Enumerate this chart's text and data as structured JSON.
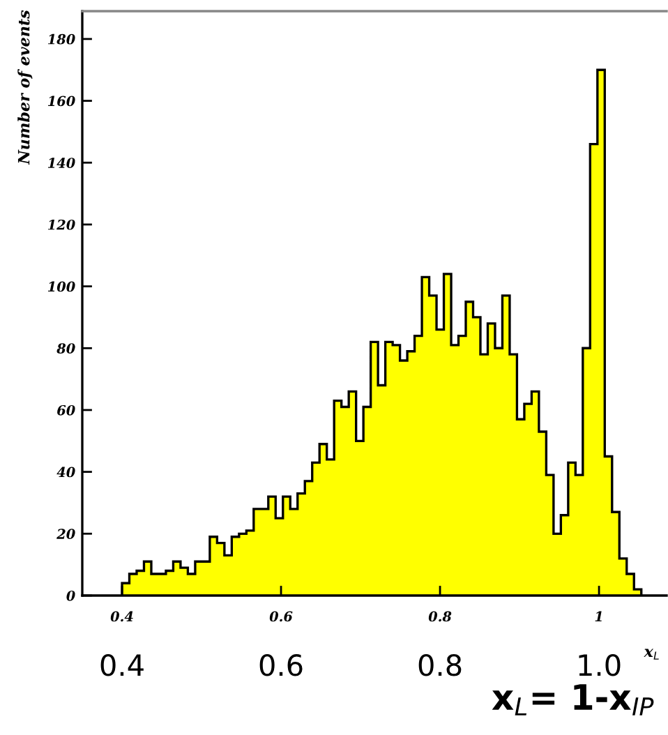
{
  "chart_data": {
    "type": "histogram",
    "color": "#ffff00",
    "bins": [
      0.4,
      0.4092,
      0.4184,
      0.4276,
      0.4368,
      0.446,
      0.4552,
      0.4644,
      0.4736,
      0.4828,
      0.492,
      0.5012,
      0.5104,
      0.5196,
      0.5288,
      0.538,
      0.5472,
      0.5564,
      0.5656,
      0.5748,
      0.584,
      0.5932,
      0.6024,
      0.6116,
      0.6208,
      0.63,
      0.6392,
      0.6484,
      0.6576,
      0.6668,
      0.676,
      0.6852,
      0.6944,
      0.7036,
      0.7128,
      0.722,
      0.7312,
      0.7404,
      0.7496,
      0.7588,
      0.768,
      0.7772,
      0.7864,
      0.7956,
      0.8048,
      0.814,
      0.8232,
      0.8324,
      0.8416,
      0.8508,
      0.86,
      0.8692,
      0.8784,
      0.8876,
      0.8968,
      0.906,
      0.9152,
      0.9244,
      0.9336,
      0.9428,
      0.952,
      0.9612,
      0.9704,
      0.9796,
      0.9888,
      0.998,
      1.0072,
      1.0164,
      1.0256,
      1.0348,
      1.044,
      1.0532
    ],
    "values": [
      4,
      7,
      8,
      11,
      7,
      7,
      8,
      11,
      9,
      7,
      11,
      11,
      19,
      17,
      13,
      19,
      20,
      21,
      28,
      28,
      32,
      25,
      32,
      28,
      33,
      37,
      43,
      49,
      44,
      63,
      61,
      66,
      50,
      61,
      82,
      68,
      82,
      81,
      76,
      79,
      84,
      103,
      97,
      86,
      104,
      81,
      84,
      95,
      90,
      78,
      88,
      80,
      97,
      78,
      57,
      62,
      66,
      53,
      39,
      20,
      26,
      43,
      39,
      80,
      146,
      170,
      45,
      27,
      12,
      7,
      2
    ],
    "xlim": [
      0.35,
      1.085
    ],
    "xticks": [
      0.4,
      0.6,
      0.8,
      {
        "value": 1,
        "label": "1"
      }
    ],
    "ylim": [
      0,
      189
    ],
    "yticks": [
      0,
      20,
      40,
      60,
      80,
      100,
      120,
      140,
      160,
      180
    ],
    "x2lim": [
      0.35,
      1.085
    ],
    "x2ticks": [
      0.4,
      0.6,
      0.8,
      {
        "value": 1,
        "label": "1.0"
      }
    ],
    "xlabel": "x$_{L}$",
    "ylabel": "Number of events",
    "x2label": "x$_{L}$= 1-x$_{IP}$"
  }
}
